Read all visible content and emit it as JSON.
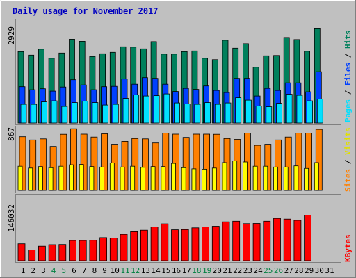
{
  "chart_data": [
    {
      "type": "bar",
      "title": "Daily usage for November 2017",
      "categories": [
        "1",
        "2",
        "3",
        "4",
        "5",
        "6",
        "7",
        "8",
        "9",
        "10",
        "11",
        "12",
        "13",
        "14",
        "15",
        "16",
        "17",
        "18",
        "19",
        "20",
        "21",
        "22",
        "23",
        "24",
        "25",
        "26",
        "27",
        "28",
        "29",
        "30",
        "31"
      ],
      "weekend_days": [
        "4",
        "5",
        "11",
        "12",
        "18",
        "19",
        "25",
        "26"
      ],
      "ymax_label": "2929",
      "ylim": [
        0,
        2929
      ],
      "series": [
        {
          "name": "Hits",
          "color": "#00805c",
          "values": [
            2060,
            1960,
            2130,
            1870,
            2020,
            2420,
            2360,
            1920,
            2000,
            2040,
            2200,
            2190,
            2140,
            2350,
            1990,
            1990,
            2060,
            2080,
            1870,
            1830,
            2390,
            2160,
            2290,
            1610,
            1940,
            1950,
            2470,
            2410,
            2070,
            2720,
            0
          ]
        },
        {
          "name": "Files",
          "color": "#0040ff",
          "values": [
            1050,
            960,
            990,
            920,
            1040,
            1250,
            1100,
            960,
            1050,
            1060,
            1270,
            1120,
            1310,
            1290,
            1120,
            910,
            1000,
            970,
            1070,
            940,
            880,
            1290,
            1290,
            780,
            1000,
            940,
            1160,
            1160,
            900,
            1480,
            0
          ]
        },
        {
          "name": "Pages",
          "color": "#00e0ff",
          "values": [
            540,
            540,
            610,
            640,
            480,
            590,
            630,
            590,
            520,
            540,
            710,
            810,
            780,
            790,
            840,
            580,
            550,
            540,
            590,
            540,
            580,
            730,
            660,
            490,
            470,
            570,
            830,
            800,
            640,
            690,
            0
          ]
        }
      ]
    },
    {
      "type": "bar",
      "ymax_label": "867",
      "ylim": [
        0,
        867
      ],
      "series": [
        {
          "name": "Visits",
          "color": "#ff8000",
          "values": [
            745,
            700,
            715,
            610,
            778,
            855,
            780,
            740,
            785,
            640,
            680,
            720,
            715,
            658,
            795,
            780,
            735,
            780,
            780,
            778,
            720,
            708,
            795,
            625,
            640,
            700,
            740,
            795,
            795,
            847,
            0
          ]
        },
        {
          "name": "Sites",
          "color": "#ffff00",
          "values": [
            335,
            310,
            330,
            315,
            335,
            355,
            360,
            330,
            325,
            380,
            325,
            335,
            320,
            330,
            330,
            375,
            315,
            300,
            295,
            310,
            385,
            410,
            395,
            335,
            335,
            325,
            325,
            340,
            305,
            385,
            0
          ]
        }
      ]
    },
    {
      "type": "bar",
      "ymax_label": "146032",
      "ylim": [
        0,
        146032
      ],
      "series": [
        {
          "name": "KBytes",
          "color": "#ff0000",
          "values": [
            38500,
            24500,
            33000,
            36500,
            37000,
            46000,
            46000,
            46500,
            52500,
            51500,
            60000,
            66000,
            69500,
            77000,
            84000,
            70500,
            71000,
            75000,
            77000,
            78500,
            88500,
            90000,
            84500,
            85000,
            90000,
            96500,
            95000,
            92000,
            104000,
            0,
            0
          ]
        }
      ]
    }
  ]
}
